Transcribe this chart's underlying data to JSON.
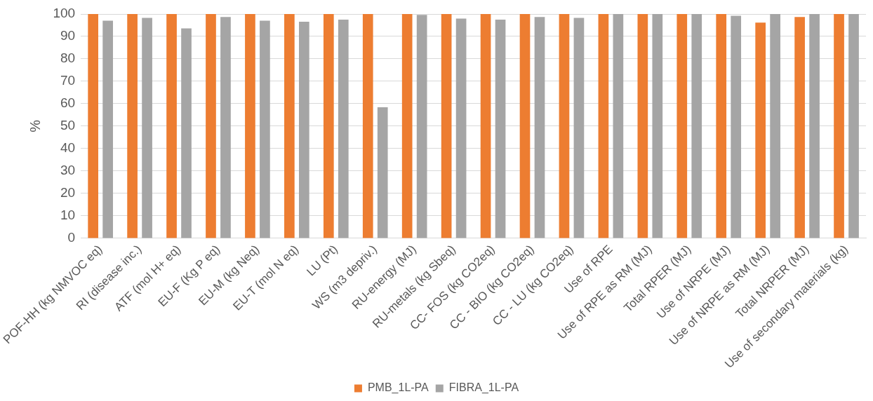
{
  "chart_data": {
    "type": "bar",
    "ylabel": "%",
    "categories": [
      "POF-HH (kg NMVOC eq)",
      "RI (disease inc.)",
      "ATF (mol H+ eq)",
      "EU-F (Kg P eq)",
      "EU-M (kg Neq)",
      "EU-T (mol N eq)",
      "LU (Pt)",
      "WS (m3 depriv.)",
      "RU-energy (MJ)",
      "RU-metals (kg Sbeq)",
      "CC- FOS (kg CO2eq)",
      "CC - BIO (kg CO2eq)",
      "CC - LU (kg CO2eq)",
      "Use of RPE",
      "Use of RPE as RM (MJ)",
      "Total RPER (MJ)",
      "Use of NRPE (MJ)",
      "Use of NRPE as RM (MJ)",
      "Total NRPER (MJ)",
      "Use of secondary materials (kg)"
    ],
    "series": [
      {
        "name": "PMB_1L-PA",
        "color": "#ed7d31",
        "values": [
          100,
          100,
          100,
          100,
          100,
          100,
          100,
          100,
          100,
          100,
          100,
          100,
          100,
          100,
          100,
          100,
          100,
          96.2,
          98.7,
          100
        ]
      },
      {
        "name": "FIBRA_1L-PA",
        "color": "#a5a5a5",
        "values": [
          97,
          98.3,
          93.6,
          98.7,
          97,
          96.6,
          97.5,
          58.4,
          99.6,
          98,
          97.5,
          98.7,
          98.3,
          100,
          100,
          100,
          99.2,
          100,
          100,
          100
        ]
      }
    ],
    "ylim": [
      0,
      100
    ],
    "yticks": [
      0,
      10,
      20,
      30,
      40,
      50,
      60,
      70,
      80,
      90,
      100
    ],
    "grid": "y",
    "legend": "bottom"
  }
}
